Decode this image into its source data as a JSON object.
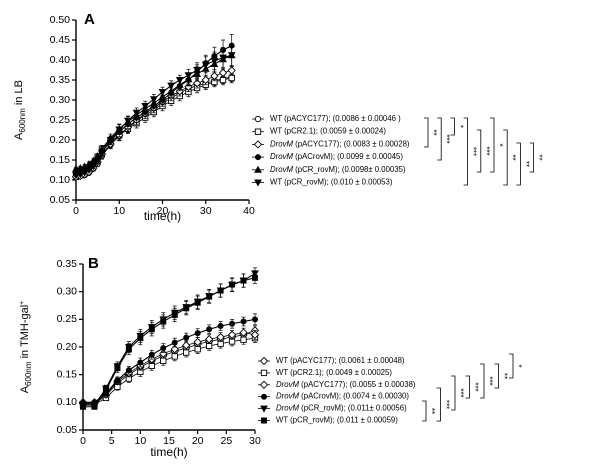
{
  "chart_data": [
    {
      "panel": "A",
      "type": "line",
      "ylabel_main": "A",
      "ylabel_sub": "600nm",
      "ylabel_tail": " in LB",
      "ylabel_sup": "",
      "xlabel": "time(h)",
      "xlim": [
        0,
        40
      ],
      "ylim": [
        0.05,
        0.5
      ],
      "xticks": [
        "0",
        "10",
        "20",
        "30",
        "40"
      ],
      "yticks": [
        "0.05",
        "0.10",
        "0.15",
        "0.20",
        "0.25",
        "0.30",
        "0.35",
        "0.40",
        "0.45",
        "0.50"
      ],
      "series": [
        {
          "pre": "WT",
          "post": " (pACYC177); (0.0086 ± 0.00046 )",
          "marker": "circle-open",
          "x": [
            0,
            1,
            2,
            3,
            4,
            5,
            6,
            8,
            10,
            12,
            14,
            16,
            18,
            20,
            22,
            24,
            26,
            28,
            30,
            32,
            34,
            36
          ],
          "y": [
            0.108,
            0.11,
            0.112,
            0.118,
            0.128,
            0.14,
            0.16,
            0.188,
            0.21,
            0.23,
            0.248,
            0.262,
            0.275,
            0.292,
            0.305,
            0.318,
            0.328,
            0.336,
            0.342,
            0.348,
            0.353,
            0.358
          ],
          "err": [
            0.004,
            0.004,
            0.004,
            0.005,
            0.005,
            0.006,
            0.008,
            0.01,
            0.012,
            0.012,
            0.012,
            0.012,
            0.012,
            0.012,
            0.012,
            0.012,
            0.012,
            0.012,
            0.012,
            0.012,
            0.012,
            0.012
          ]
        },
        {
          "pre": "WT",
          "post": " (pCR2.1); (0.0059 ± 0.00024)",
          "marker": "square-open",
          "x": [
            0,
            1,
            2,
            3,
            4,
            5,
            6,
            8,
            10,
            12,
            14,
            16,
            18,
            20,
            22,
            24,
            26,
            28,
            30,
            32,
            34,
            36
          ],
          "y": [
            0.108,
            0.112,
            0.118,
            0.128,
            0.14,
            0.158,
            0.178,
            0.196,
            0.212,
            0.228,
            0.242,
            0.256,
            0.27,
            0.285,
            0.298,
            0.31,
            0.32,
            0.33,
            0.338,
            0.345,
            0.35,
            0.355
          ],
          "err": [
            0.004,
            0.004,
            0.004,
            0.005,
            0.005,
            0.006,
            0.008,
            0.01,
            0.012,
            0.012,
            0.012,
            0.012,
            0.012,
            0.012,
            0.012,
            0.012,
            0.012,
            0.012,
            0.012,
            0.012,
            0.012,
            0.012
          ]
        },
        {
          "pre": "DrovM",
          "post": " (pACYC177); (0.0083 ± 0.00028)",
          "marker": "diamond-open",
          "x": [
            0,
            1,
            2,
            3,
            4,
            5,
            6,
            8,
            10,
            12,
            14,
            16,
            18,
            20,
            22,
            24,
            26,
            28,
            30,
            32,
            34,
            36
          ],
          "y": [
            0.108,
            0.11,
            0.114,
            0.12,
            0.13,
            0.145,
            0.165,
            0.19,
            0.212,
            0.232,
            0.25,
            0.266,
            0.28,
            0.296,
            0.31,
            0.322,
            0.333,
            0.342,
            0.35,
            0.36,
            0.368,
            0.374
          ],
          "err": [
            0.004,
            0.004,
            0.004,
            0.005,
            0.005,
            0.006,
            0.008,
            0.01,
            0.012,
            0.012,
            0.012,
            0.012,
            0.012,
            0.012,
            0.012,
            0.012,
            0.012,
            0.012,
            0.012,
            0.012,
            0.012,
            0.012
          ]
        },
        {
          "pre": "DrovM",
          "post": " (pACrovM); (0.0099 ± 0.00045)",
          "marker": "circle-filled",
          "x": [
            0,
            1,
            2,
            3,
            4,
            5,
            6,
            8,
            10,
            12,
            14,
            16,
            18,
            20,
            22,
            24,
            26,
            28,
            30,
            32,
            34,
            36
          ],
          "y": [
            0.12,
            0.122,
            0.125,
            0.13,
            0.138,
            0.15,
            0.17,
            0.198,
            0.22,
            0.24,
            0.256,
            0.27,
            0.285,
            0.3,
            0.318,
            0.335,
            0.35,
            0.37,
            0.392,
            0.41,
            0.425,
            0.436
          ],
          "err": [
            0.004,
            0.004,
            0.004,
            0.005,
            0.005,
            0.006,
            0.008,
            0.01,
            0.012,
            0.012,
            0.012,
            0.012,
            0.012,
            0.012,
            0.012,
            0.012,
            0.015,
            0.018,
            0.02,
            0.022,
            0.025,
            0.028
          ]
        },
        {
          "pre": "DrovM",
          "post": " (pCR_rovM); (0.0098± 0.00035)",
          "marker": "triangle-up-filled",
          "x": [
            0,
            1,
            2,
            3,
            4,
            5,
            6,
            8,
            10,
            12,
            14,
            16,
            18,
            20,
            22,
            24,
            26,
            28,
            30,
            32,
            34,
            36
          ],
          "y": [
            0.128,
            0.13,
            0.134,
            0.14,
            0.148,
            0.16,
            0.178,
            0.205,
            0.228,
            0.246,
            0.262,
            0.278,
            0.292,
            0.308,
            0.322,
            0.338,
            0.352,
            0.365,
            0.378,
            0.39,
            0.402,
            0.412
          ],
          "err": [
            0.004,
            0.004,
            0.004,
            0.005,
            0.005,
            0.006,
            0.008,
            0.01,
            0.012,
            0.012,
            0.012,
            0.012,
            0.012,
            0.012,
            0.012,
            0.012,
            0.015,
            0.018,
            0.02,
            0.022,
            0.025,
            0.028
          ]
        },
        {
          "pre": "WT",
          "post": " (pCR_rovM); (0.010 ± 0.00053)",
          "marker": "triangle-down-filled",
          "x": [
            0,
            1,
            2,
            3,
            4,
            5,
            6,
            8,
            10,
            12,
            14,
            16,
            18,
            20,
            22,
            24,
            26,
            28,
            30,
            32,
            34,
            36
          ],
          "y": [
            0.112,
            0.114,
            0.118,
            0.125,
            0.134,
            0.148,
            0.168,
            0.2,
            0.226,
            0.248,
            0.268,
            0.285,
            0.302,
            0.32,
            0.336,
            0.35,
            0.362,
            0.375,
            0.388,
            0.398,
            0.406,
            0.412
          ],
          "err": [
            0.004,
            0.004,
            0.004,
            0.005,
            0.005,
            0.006,
            0.008,
            0.01,
            0.012,
            0.012,
            0.012,
            0.012,
            0.012,
            0.012,
            0.012,
            0.012,
            0.015,
            0.018,
            0.02,
            0.022,
            0.025,
            0.028
          ]
        }
      ],
      "significance": [
        "**",
        "***",
        "*",
        "***",
        "***",
        "*",
        "**",
        "**",
        "**"
      ]
    },
    {
      "panel": "B",
      "type": "line",
      "ylabel_main": "A",
      "ylabel_sub": "600nm",
      "ylabel_tail": " in TMH-gal",
      "ylabel_sup": "+",
      "xlabel": "time(h)",
      "xlim": [
        0,
        30
      ],
      "ylim": [
        0.05,
        0.35
      ],
      "xticks": [
        "0",
        "5",
        "10",
        "15",
        "20",
        "25",
        "30"
      ],
      "yticks": [
        "0.05",
        "0.10",
        "0.15",
        "0.20",
        "0.25",
        "0.30",
        "0.35"
      ],
      "series": [
        {
          "pre": "WT",
          "post": " (pACYC177); (0.0061 ± 0.00048)",
          "marker": "diamond-open",
          "x": [
            0,
            2,
            4,
            6,
            8,
            10,
            12,
            14,
            16,
            18,
            20,
            22,
            24,
            26,
            28,
            30
          ],
          "y": [
            0.098,
            0.098,
            0.112,
            0.135,
            0.15,
            0.163,
            0.175,
            0.184,
            0.192,
            0.198,
            0.205,
            0.21,
            0.214,
            0.218,
            0.222,
            0.23
          ],
          "err": [
            0.004,
            0.004,
            0.005,
            0.006,
            0.007,
            0.008,
            0.008,
            0.008,
            0.008,
            0.008,
            0.008,
            0.008,
            0.008,
            0.008,
            0.008,
            0.008
          ]
        },
        {
          "pre": "WT",
          "post": " (pCR2.1); (0.0049 ± 0.00025)",
          "marker": "square-open",
          "x": [
            0,
            2,
            4,
            6,
            8,
            10,
            12,
            14,
            16,
            18,
            20,
            22,
            24,
            26,
            28,
            30
          ],
          "y": [
            0.096,
            0.096,
            0.108,
            0.128,
            0.143,
            0.155,
            0.166,
            0.175,
            0.183,
            0.19,
            0.196,
            0.202,
            0.206,
            0.21,
            0.213,
            0.216
          ],
          "err": [
            0.004,
            0.004,
            0.005,
            0.006,
            0.007,
            0.008,
            0.008,
            0.008,
            0.008,
            0.008,
            0.008,
            0.008,
            0.008,
            0.008,
            0.008,
            0.008
          ]
        },
        {
          "pre": "DrovM",
          "post": " (pACYC177); (0.0055 ± 0.00038)",
          "marker": "diamond-open",
          "x": [
            0,
            2,
            4,
            6,
            8,
            10,
            12,
            14,
            16,
            18,
            20,
            22,
            24,
            26,
            28,
            30
          ],
          "y": [
            0.1,
            0.1,
            0.114,
            0.138,
            0.153,
            0.166,
            0.178,
            0.188,
            0.196,
            0.203,
            0.209,
            0.214,
            0.218,
            0.222,
            0.226,
            0.222
          ],
          "err": [
            0.004,
            0.004,
            0.005,
            0.006,
            0.007,
            0.008,
            0.008,
            0.008,
            0.008,
            0.008,
            0.008,
            0.008,
            0.008,
            0.008,
            0.008,
            0.008
          ]
        },
        {
          "pre": "DrovM",
          "post": " (pACrovM); (0.0074 ± 0.00030)",
          "marker": "circle-filled",
          "x": [
            0,
            2,
            4,
            6,
            8,
            10,
            12,
            14,
            16,
            18,
            20,
            22,
            24,
            26,
            28,
            30
          ],
          "y": [
            0.1,
            0.1,
            0.116,
            0.14,
            0.158,
            0.172,
            0.186,
            0.198,
            0.208,
            0.217,
            0.225,
            0.232,
            0.238,
            0.242,
            0.246,
            0.25
          ],
          "err": [
            0.004,
            0.004,
            0.005,
            0.006,
            0.007,
            0.008,
            0.008,
            0.008,
            0.008,
            0.008,
            0.008,
            0.008,
            0.008,
            0.008,
            0.008,
            0.01
          ]
        },
        {
          "pre": "DrovM",
          "post": " (pCR_rovM); (0.011± 0.00056)",
          "marker": "triangle-down-filled",
          "x": [
            0,
            2,
            4,
            6,
            8,
            10,
            12,
            14,
            16,
            18,
            20,
            22,
            24,
            26,
            28,
            30
          ],
          "y": [
            0.095,
            0.095,
            0.125,
            0.165,
            0.2,
            0.22,
            0.236,
            0.25,
            0.262,
            0.272,
            0.282,
            0.292,
            0.302,
            0.312,
            0.32,
            0.333
          ],
          "err": [
            0.004,
            0.004,
            0.006,
            0.008,
            0.01,
            0.012,
            0.012,
            0.012,
            0.012,
            0.012,
            0.012,
            0.012,
            0.012,
            0.012,
            0.012,
            0.01
          ]
        },
        {
          "pre": "WT",
          "post": " (pCR_rovM); (0.011 ± 0.00059)",
          "marker": "square-filled",
          "x": [
            0,
            2,
            4,
            6,
            8,
            10,
            12,
            14,
            16,
            18,
            20,
            22,
            24,
            26,
            28,
            30
          ],
          "y": [
            0.092,
            0.092,
            0.122,
            0.162,
            0.196,
            0.216,
            0.232,
            0.246,
            0.258,
            0.27,
            0.28,
            0.291,
            0.302,
            0.313,
            0.32,
            0.325
          ],
          "err": [
            0.004,
            0.004,
            0.006,
            0.008,
            0.01,
            0.012,
            0.012,
            0.012,
            0.012,
            0.012,
            0.012,
            0.012,
            0.012,
            0.012,
            0.012,
            0.01
          ]
        }
      ],
      "significance": [
        "**",
        "***",
        "***",
        "***",
        "***",
        "**",
        "*"
      ]
    }
  ]
}
